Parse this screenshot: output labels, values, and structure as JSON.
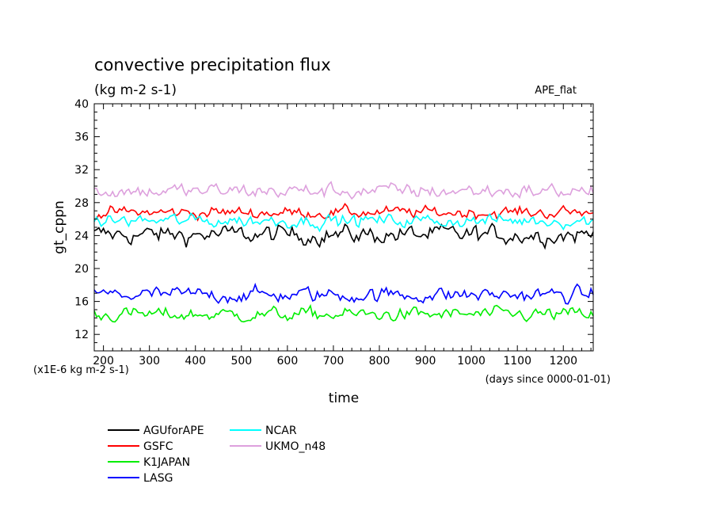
{
  "chart_data": {
    "type": "line",
    "title": "convective precipitation flux",
    "subtitle": "(kg m-2 s-1)",
    "tag": "APE_flat",
    "xlabel": "time",
    "ylabel": "gt_cppn",
    "x_unit_note": "(days since 0000-01-01)",
    "y_scale_note": "(x1E-6 kg m-2 s-1)",
    "xlim": [
      180,
      1265
    ],
    "ylim": [
      10,
      40
    ],
    "x_ticks": [
      200,
      300,
      400,
      500,
      600,
      700,
      800,
      900,
      1000,
      1100,
      1200
    ],
    "y_ticks": [
      12,
      16,
      20,
      24,
      28,
      32,
      36,
      40
    ],
    "grid": false,
    "legend_position": "bottom-left",
    "x_step_days": 5,
    "series": [
      {
        "name": "AGUforAPE",
        "color": "#000000",
        "mean": 24.1,
        "amp": 1.1
      },
      {
        "name": "GSFC",
        "color": "#ff0000",
        "mean": 26.8,
        "amp": 0.7
      },
      {
        "name": "K1JAPAN",
        "color": "#00ee00",
        "mean": 14.4,
        "amp": 0.8
      },
      {
        "name": "LASG",
        "color": "#0000ff",
        "mean": 16.8,
        "amp": 0.9
      },
      {
        "name": "NCAR",
        "color": "#00ffff",
        "mean": 25.8,
        "amp": 0.8
      },
      {
        "name": "UKMO_n48",
        "color": "#dda0dd",
        "mean": 29.4,
        "amp": 0.9
      }
    ]
  }
}
